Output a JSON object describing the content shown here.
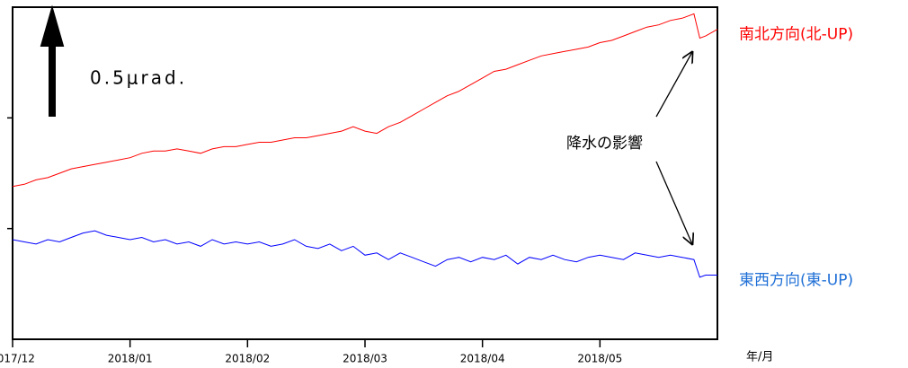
{
  "chart_data": {
    "type": "line",
    "x": [
      0,
      0.1,
      0.2,
      0.3,
      0.4,
      0.5,
      0.6,
      0.7,
      0.8,
      0.9,
      1,
      1.1,
      1.2,
      1.3,
      1.4,
      1.5,
      1.6,
      1.7,
      1.8,
      1.9,
      2,
      2.1,
      2.2,
      2.3,
      2.4,
      2.5,
      2.6,
      2.7,
      2.8,
      2.9,
      3,
      3.1,
      3.2,
      3.3,
      3.4,
      3.5,
      3.6,
      3.7,
      3.8,
      3.9,
      4,
      4.1,
      4.2,
      4.3,
      4.4,
      4.5,
      4.6,
      4.7,
      4.8,
      4.9,
      5,
      5.1,
      5.2,
      5.3,
      5.4,
      5.5,
      5.6,
      5.7,
      5.8,
      5.85,
      5.9,
      6
    ],
    "series": [
      {
        "name": "南北方向(北-UP)",
        "color": "#ff0000",
        "values": [
          0.69,
          0.7,
          0.72,
          0.73,
          0.75,
          0.77,
          0.78,
          0.79,
          0.8,
          0.81,
          0.82,
          0.84,
          0.85,
          0.85,
          0.86,
          0.85,
          0.84,
          0.86,
          0.87,
          0.87,
          0.88,
          0.89,
          0.89,
          0.9,
          0.91,
          0.91,
          0.92,
          0.93,
          0.94,
          0.96,
          0.94,
          0.93,
          0.96,
          0.98,
          1.01,
          1.04,
          1.07,
          1.1,
          1.12,
          1.15,
          1.18,
          1.21,
          1.22,
          1.24,
          1.26,
          1.28,
          1.29,
          1.3,
          1.31,
          1.32,
          1.34,
          1.35,
          1.37,
          1.39,
          1.41,
          1.42,
          1.44,
          1.45,
          1.47,
          1.36,
          1.37,
          1.4
        ]
      },
      {
        "name": "東西方向(東-UP)",
        "color": "#0000ff",
        "label_color": "#1f6fd6",
        "values": [
          0.45,
          0.44,
          0.43,
          0.45,
          0.44,
          0.46,
          0.48,
          0.49,
          0.47,
          0.46,
          0.45,
          0.46,
          0.44,
          0.45,
          0.43,
          0.44,
          0.42,
          0.45,
          0.43,
          0.44,
          0.43,
          0.44,
          0.42,
          0.43,
          0.45,
          0.42,
          0.41,
          0.43,
          0.4,
          0.42,
          0.38,
          0.39,
          0.36,
          0.39,
          0.37,
          0.35,
          0.33,
          0.36,
          0.37,
          0.35,
          0.37,
          0.36,
          0.38,
          0.34,
          0.37,
          0.36,
          0.38,
          0.36,
          0.35,
          0.37,
          0.38,
          0.37,
          0.36,
          0.39,
          0.38,
          0.37,
          0.38,
          0.37,
          0.36,
          0.28,
          0.29,
          0.29
        ]
      }
    ],
    "xlim": [
      0,
      6
    ],
    "xticks": [
      {
        "value": 0,
        "label": "2017/12"
      },
      {
        "value": 1,
        "label": "2018/01"
      },
      {
        "value": 2,
        "label": "2018/02"
      },
      {
        "value": 3,
        "label": "2018/03"
      },
      {
        "value": 4,
        "label": "2018/04"
      },
      {
        "value": 5,
        "label": "2018/05"
      }
    ],
    "x_label": "年/月",
    "ylim": [
      0,
      1.5
    ],
    "yticks": [
      0.5,
      1
    ],
    "scale_label": "0.5μrad.",
    "annotation": "降水の影響"
  }
}
